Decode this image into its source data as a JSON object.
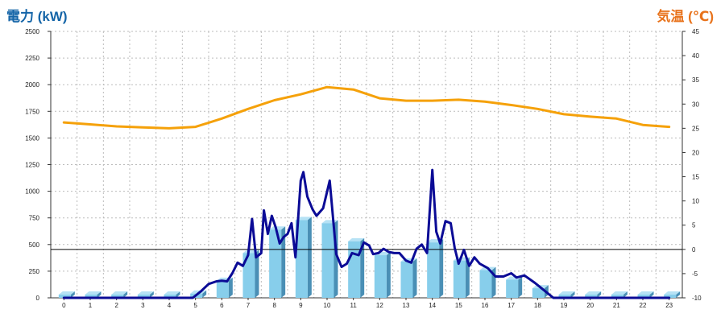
{
  "colors": {
    "left_title": "#1565a8",
    "right_title": "#e8731c",
    "bar_front": "#87ceeb",
    "bar_side": "#4a8fb5",
    "bar_top": "#b6e2f5",
    "power_line": "#0b0b96",
    "temp_line": "#f5a10a",
    "grid": "#bbbbbb",
    "reference_line": "#000000"
  },
  "chart_data": {
    "type": "bar",
    "grid": true,
    "y_left": {
      "label": "電力 (kW)",
      "ylim": [
        0,
        2500
      ],
      "ticks": [
        0,
        250,
        500,
        750,
        1000,
        1250,
        1500,
        1750,
        2000,
        2250,
        2500
      ]
    },
    "y_right": {
      "label": "気温 (℃)",
      "ylim": [
        -10,
        45
      ],
      "ticks": [
        -10,
        -5,
        0,
        5,
        10,
        15,
        20,
        25,
        30,
        35,
        40,
        45
      ]
    },
    "categories": [
      "0",
      "1",
      "2",
      "3",
      "4",
      "5",
      "6",
      "7",
      "8",
      "9",
      "10",
      "11",
      "12",
      "13",
      "14",
      "15",
      "16",
      "17",
      "18",
      "19",
      "20",
      "21",
      "22",
      "23"
    ],
    "series": [
      {
        "kind": "bar",
        "axis": "left",
        "values": [
          30,
          30,
          30,
          30,
          30,
          40,
          160,
          420,
          640,
          730,
          700,
          530,
          400,
          340,
          520,
          350,
          260,
          170,
          90,
          30,
          30,
          30,
          30,
          30
        ]
      },
      {
        "kind": "line",
        "axis": "left",
        "x": [
          0,
          1,
          2,
          3,
          4,
          4.9,
          5.2,
          5.5,
          5.8,
          6,
          6.2,
          6.4,
          6.6,
          6.8,
          7,
          7.15,
          7.3,
          7.5,
          7.6,
          7.75,
          7.9,
          8.05,
          8.2,
          8.35,
          8.5,
          8.65,
          8.8,
          9,
          9.1,
          9.25,
          9.45,
          9.6,
          9.85,
          10.1,
          10.35,
          10.55,
          10.75,
          10.95,
          11.2,
          11.4,
          11.6,
          11.75,
          11.95,
          12.15,
          12.35,
          12.55,
          12.75,
          13,
          13.2,
          13.4,
          13.6,
          13.8,
          14,
          14.15,
          14.3,
          14.5,
          14.7,
          14.85,
          15,
          15.2,
          15.4,
          15.6,
          15.8,
          16.1,
          16.4,
          16.7,
          17,
          17.2,
          17.5,
          17.9,
          18.2,
          18.6,
          19,
          20,
          21,
          22,
          23
        ],
        "values": [
          0,
          0,
          0,
          0,
          0,
          0,
          60,
          130,
          155,
          160,
          155,
          230,
          330,
          300,
          400,
          740,
          380,
          420,
          820,
          600,
          770,
          660,
          510,
          570,
          600,
          700,
          380,
          1100,
          1180,
          950,
          830,
          770,
          840,
          1100,
          410,
          290,
          320,
          420,
          400,
          520,
          490,
          410,
          420,
          460,
          430,
          420,
          420,
          350,
          330,
          460,
          500,
          420,
          1200,
          620,
          510,
          720,
          700,
          470,
          320,
          450,
          300,
          380,
          320,
          280,
          200,
          200,
          230,
          190,
          210,
          140,
          80,
          0,
          0,
          0,
          0,
          0,
          0
        ]
      },
      {
        "kind": "line",
        "axis": "right",
        "x": [
          0,
          1,
          2,
          3,
          4,
          5,
          6,
          7,
          8,
          9,
          10,
          11,
          12,
          13,
          14,
          15,
          16,
          17,
          18,
          19,
          20,
          21,
          22,
          23
        ],
        "values": [
          26.2,
          25.8,
          25.4,
          25.2,
          25.0,
          25.3,
          27.0,
          29.0,
          30.8,
          32.0,
          33.5,
          33.0,
          31.2,
          30.7,
          30.7,
          30.9,
          30.5,
          29.8,
          29.0,
          27.9,
          27.4,
          27.0,
          25.7,
          25.3
        ]
      }
    ],
    "reference_line": {
      "axis": "right",
      "value": 0
    }
  }
}
